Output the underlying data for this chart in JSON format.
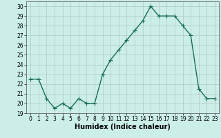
{
  "x": [
    0,
    1,
    2,
    3,
    4,
    5,
    6,
    7,
    8,
    9,
    10,
    11,
    12,
    13,
    14,
    15,
    16,
    17,
    18,
    19,
    20,
    21,
    22,
    23
  ],
  "y": [
    22.5,
    22.5,
    20.5,
    19.5,
    20.0,
    19.5,
    20.5,
    20.0,
    20.0,
    23.0,
    24.5,
    25.5,
    26.5,
    27.5,
    28.5,
    30.0,
    29.0,
    29.0,
    29.0,
    28.0,
    27.0,
    21.5,
    20.5,
    20.5
  ],
  "line_color": "#1a6b5a",
  "marker": "+",
  "marker_size": 4,
  "linewidth": 1.0,
  "xlabel": "Humidex (Indice chaleur)",
  "xlim": [
    -0.5,
    23.5
  ],
  "ylim": [
    19,
    30.5
  ],
  "yticks": [
    19,
    20,
    21,
    22,
    23,
    24,
    25,
    26,
    27,
    28,
    29,
    30
  ],
  "xticks": [
    0,
    1,
    2,
    3,
    4,
    5,
    6,
    7,
    8,
    9,
    10,
    11,
    12,
    13,
    14,
    15,
    16,
    17,
    18,
    19,
    20,
    21,
    22,
    23
  ],
  "bg_color": "#cceee8",
  "grid_color": "#b0c8c0",
  "tick_labelsize": 5.5,
  "xlabel_fontsize": 7
}
